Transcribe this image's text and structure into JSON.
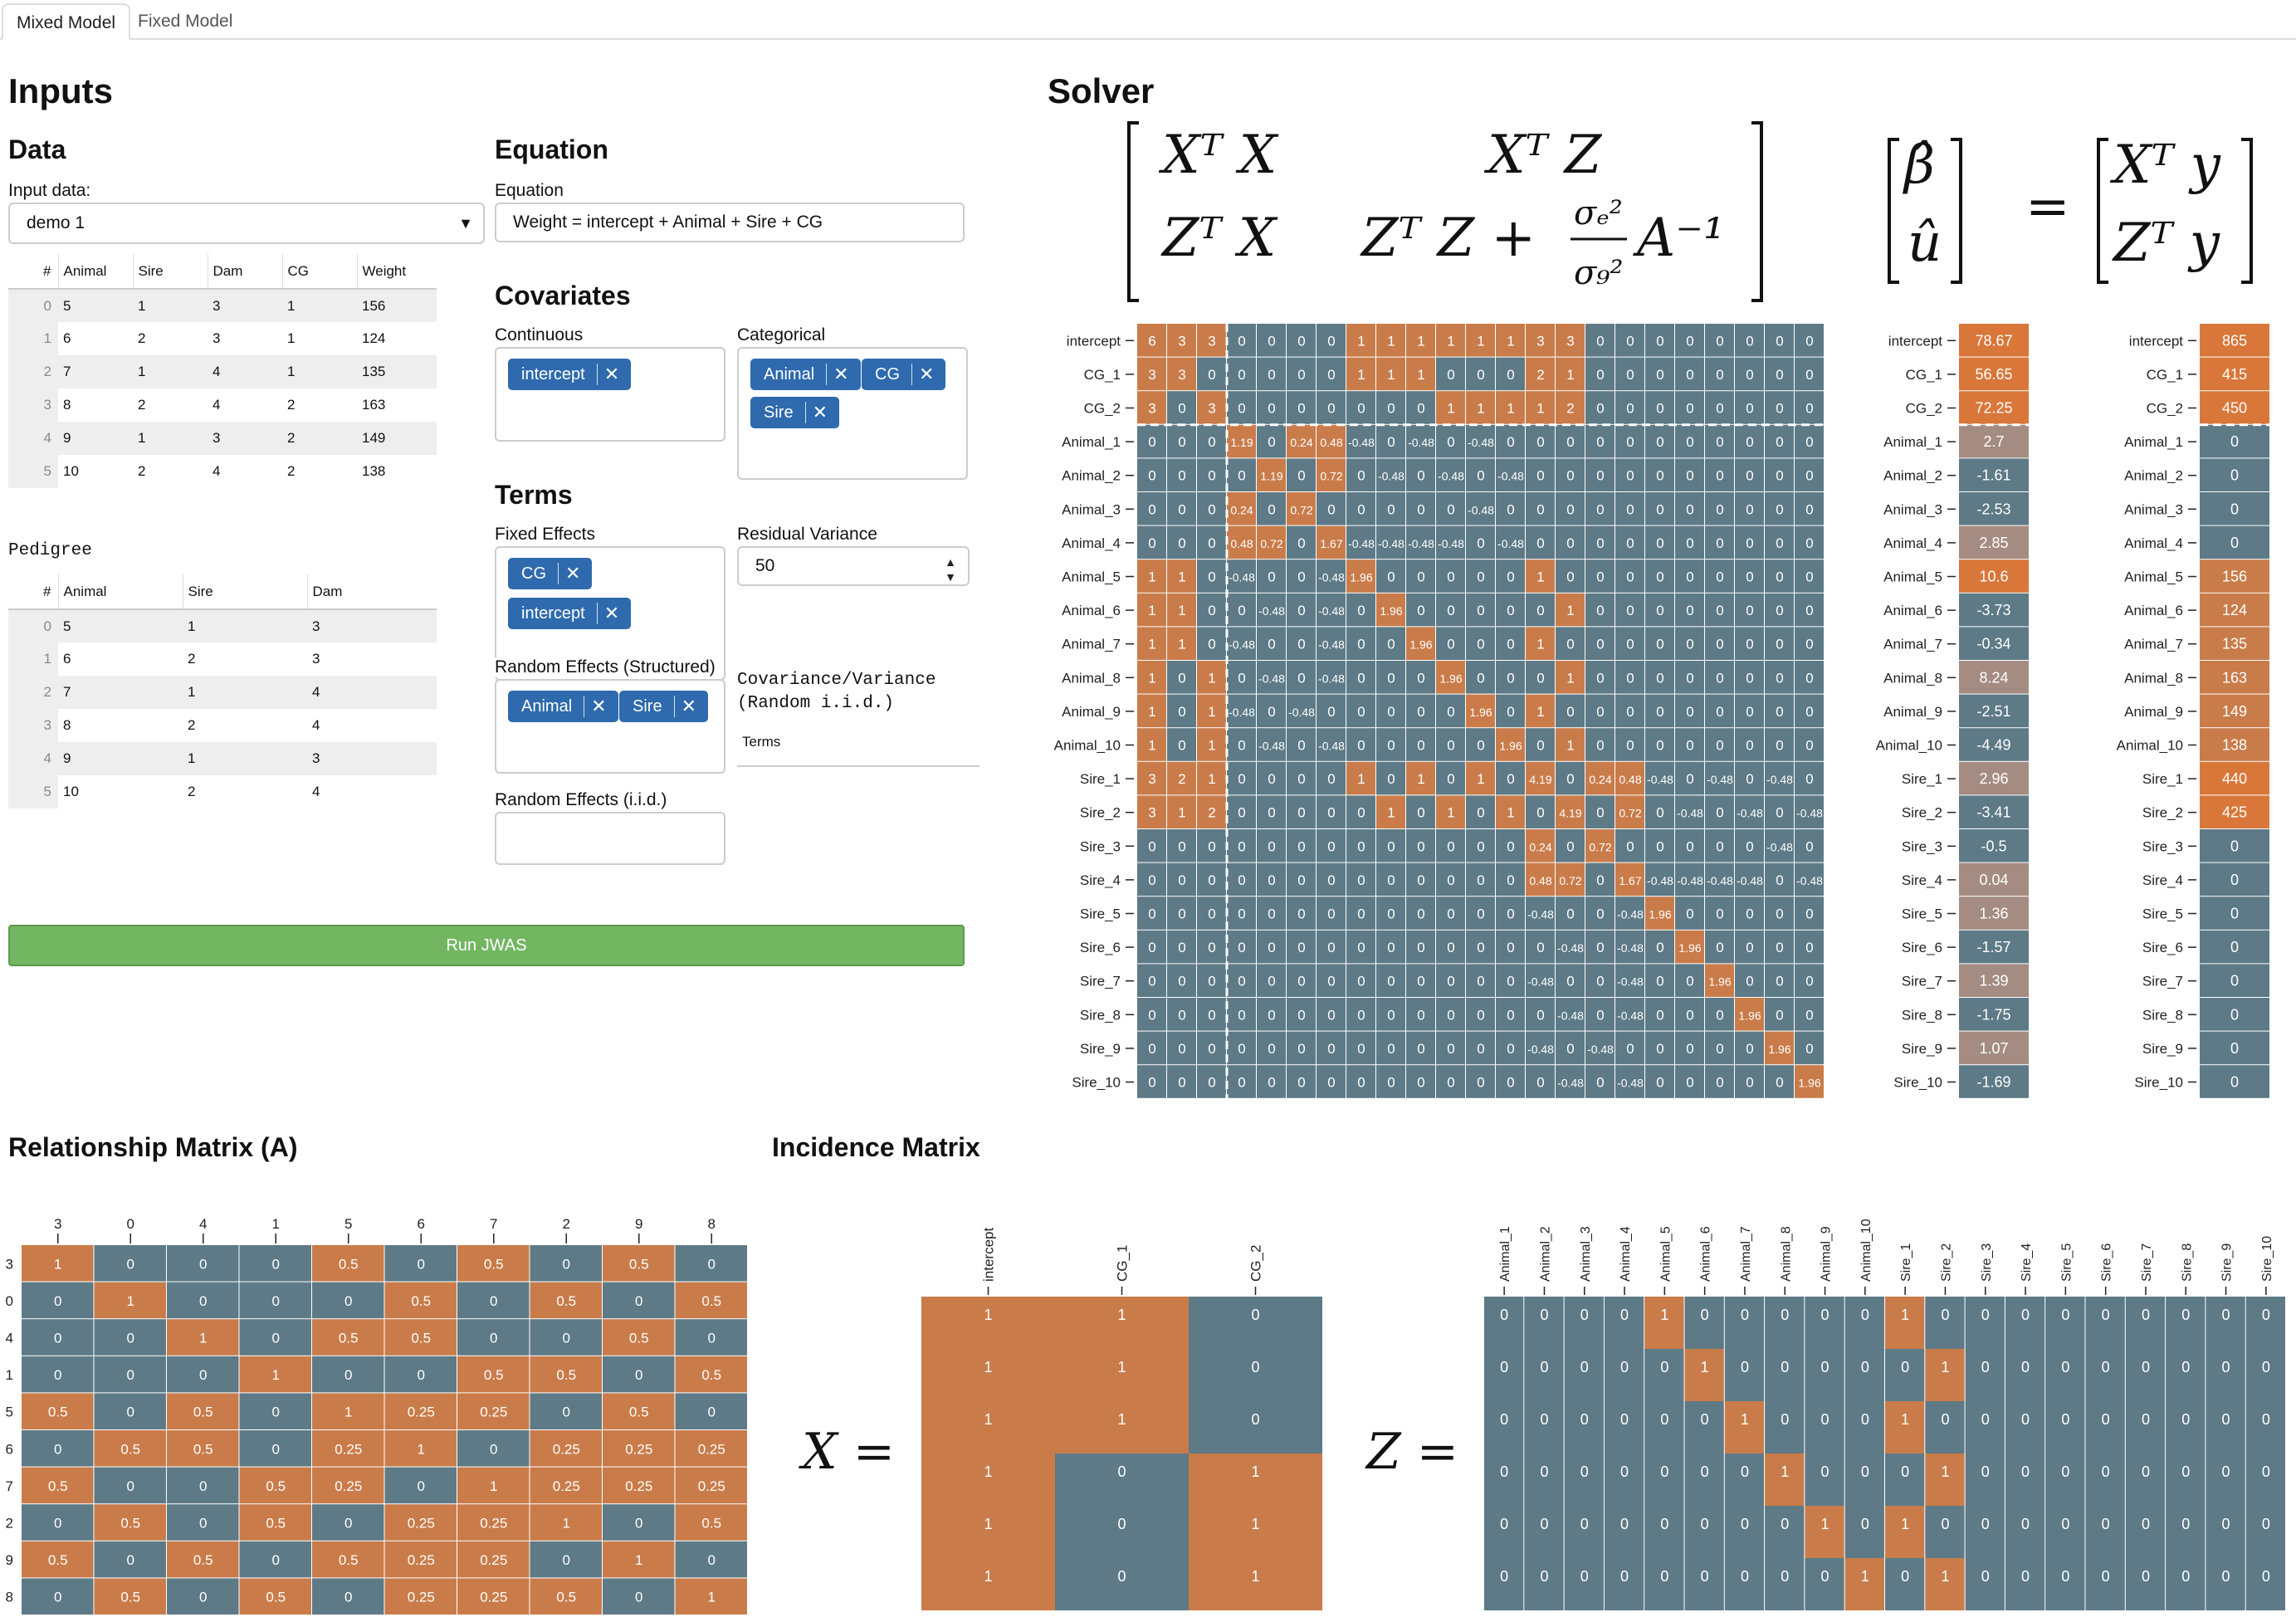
{
  "tabs": [
    "Mixed Model",
    "Fixed Model"
  ],
  "inputs": {
    "title": "Inputs",
    "data_title": "Data",
    "input_data_label": "Input data:",
    "input_data_value": "demo 1",
    "data_table": {
      "headers": [
        "#",
        "Animal",
        "Sire",
        "Dam",
        "CG",
        "Weight"
      ],
      "rows": [
        [
          "0",
          "5",
          "1",
          "3",
          "1",
          "156"
        ],
        [
          "1",
          "6",
          "2",
          "3",
          "1",
          "124"
        ],
        [
          "2",
          "7",
          "1",
          "4",
          "1",
          "135"
        ],
        [
          "3",
          "8",
          "2",
          "4",
          "2",
          "163"
        ],
        [
          "4",
          "9",
          "1",
          "3",
          "2",
          "149"
        ],
        [
          "5",
          "10",
          "2",
          "4",
          "2",
          "138"
        ]
      ]
    },
    "pedigree_title": "Pedigree",
    "pedigree_table": {
      "headers": [
        "#",
        "Animal",
        "Sire",
        "Dam"
      ],
      "rows": [
        [
          "0",
          "5",
          "1",
          "3"
        ],
        [
          "1",
          "6",
          "2",
          "3"
        ],
        [
          "2",
          "7",
          "1",
          "4"
        ],
        [
          "3",
          "8",
          "2",
          "4"
        ],
        [
          "4",
          "9",
          "1",
          "3"
        ],
        [
          "5",
          "10",
          "2",
          "4"
        ]
      ]
    },
    "equation_title": "Equation",
    "equation_label": "Equation",
    "equation_value": "Weight = intercept + Animal + Sire + CG",
    "covariates_title": "Covariates",
    "continuous_label": "Continuous",
    "continuous_chips": [
      "intercept"
    ],
    "categorical_label": "Categorical",
    "categorical_chips": [
      "Animal",
      "CG",
      "Sire"
    ],
    "terms_title": "Terms",
    "fixed_label": "Fixed Effects",
    "fixed_chips": [
      "CG",
      "intercept"
    ],
    "random_struct_label": "Random Effects (Structured)",
    "random_struct_chips": [
      "Animal",
      "Sire"
    ],
    "random_iid_label": "Random Effects (i.i.d.)",
    "residual_label": "Residual Variance",
    "residual_value": "50",
    "covvar_label_1": "Covariance/Variance",
    "covvar_label_2": "(Random i.i.d.)",
    "covvar_col": "Terms",
    "run_label": "Run JWAS"
  },
  "solver": {
    "title": "Solver",
    "row_labels": [
      "intercept",
      "CG_1",
      "CG_2",
      "Animal_1",
      "Animal_2",
      "Animal_3",
      "Animal_4",
      "Animal_5",
      "Animal_6",
      "Animal_7",
      "Animal_8",
      "Animal_9",
      "Animal_10",
      "Sire_1",
      "Sire_2",
      "Sire_3",
      "Sire_4",
      "Sire_5",
      "Sire_6",
      "Sire_7",
      "Sire_8",
      "Sire_9",
      "Sire_10"
    ],
    "lhs": [
      [
        "6",
        "3",
        "3",
        "0",
        "0",
        "0",
        "0",
        "1",
        "1",
        "1",
        "1",
        "1",
        "1",
        "3",
        "3",
        "0",
        "0",
        "0",
        "0",
        "0",
        "0",
        "0",
        "0"
      ],
      [
        "3",
        "3",
        "0",
        "0",
        "0",
        "0",
        "0",
        "1",
        "1",
        "1",
        "0",
        "0",
        "0",
        "2",
        "1",
        "0",
        "0",
        "0",
        "0",
        "0",
        "0",
        "0",
        "0"
      ],
      [
        "3",
        "0",
        "3",
        "0",
        "0",
        "0",
        "0",
        "0",
        "0",
        "0",
        "1",
        "1",
        "1",
        "1",
        "2",
        "0",
        "0",
        "0",
        "0",
        "0",
        "0",
        "0",
        "0"
      ],
      [
        "0",
        "0",
        "0",
        "1.19",
        "0",
        "0.24",
        "0.48",
        "-0.48",
        "0",
        "-0.48",
        "0",
        "-0.48",
        "0",
        "0",
        "0",
        "0",
        "0",
        "0",
        "0",
        "0",
        "0",
        "0",
        "0"
      ],
      [
        "0",
        "0",
        "0",
        "0",
        "1.19",
        "0",
        "0.72",
        "0",
        "-0.48",
        "0",
        "-0.48",
        "0",
        "-0.48",
        "0",
        "0",
        "0",
        "0",
        "0",
        "0",
        "0",
        "0",
        "0",
        "0"
      ],
      [
        "0",
        "0",
        "0",
        "0.24",
        "0",
        "0.72",
        "0",
        "0",
        "0",
        "0",
        "0",
        "-0.48",
        "0",
        "0",
        "0",
        "0",
        "0",
        "0",
        "0",
        "0",
        "0",
        "0",
        "0"
      ],
      [
        "0",
        "0",
        "0",
        "0.48",
        "0.72",
        "0",
        "1.67",
        "-0.48",
        "-0.48",
        "-0.48",
        "-0.48",
        "0",
        "-0.48",
        "0",
        "0",
        "0",
        "0",
        "0",
        "0",
        "0",
        "0",
        "0",
        "0"
      ],
      [
        "1",
        "1",
        "0",
        "-0.48",
        "0",
        "0",
        "-0.48",
        "1.96",
        "0",
        "0",
        "0",
        "0",
        "0",
        "1",
        "0",
        "0",
        "0",
        "0",
        "0",
        "0",
        "0",
        "0",
        "0"
      ],
      [
        "1",
        "1",
        "0",
        "0",
        "-0.48",
        "0",
        "-0.48",
        "0",
        "1.96",
        "0",
        "0",
        "0",
        "0",
        "0",
        "1",
        "0",
        "0",
        "0",
        "0",
        "0",
        "0",
        "0",
        "0"
      ],
      [
        "1",
        "1",
        "0",
        "-0.48",
        "0",
        "0",
        "-0.48",
        "0",
        "0",
        "1.96",
        "0",
        "0",
        "0",
        "1",
        "0",
        "0",
        "0",
        "0",
        "0",
        "0",
        "0",
        "0",
        "0"
      ],
      [
        "1",
        "0",
        "1",
        "0",
        "-0.48",
        "0",
        "-0.48",
        "0",
        "0",
        "0",
        "1.96",
        "0",
        "0",
        "0",
        "1",
        "0",
        "0",
        "0",
        "0",
        "0",
        "0",
        "0",
        "0"
      ],
      [
        "1",
        "0",
        "1",
        "-0.48",
        "0",
        "-0.48",
        "0",
        "0",
        "0",
        "0",
        "0",
        "1.96",
        "0",
        "1",
        "0",
        "0",
        "0",
        "0",
        "0",
        "0",
        "0",
        "0",
        "0"
      ],
      [
        "1",
        "0",
        "1",
        "0",
        "-0.48",
        "0",
        "-0.48",
        "0",
        "0",
        "0",
        "0",
        "0",
        "1.96",
        "0",
        "1",
        "0",
        "0",
        "0",
        "0",
        "0",
        "0",
        "0",
        "0"
      ],
      [
        "3",
        "2",
        "1",
        "0",
        "0",
        "0",
        "0",
        "1",
        "0",
        "1",
        "0",
        "1",
        "0",
        "4.19",
        "0",
        "0.24",
        "0.48",
        "-0.48",
        "0",
        "-0.48",
        "0",
        "-0.48",
        "0"
      ],
      [
        "3",
        "1",
        "2",
        "0",
        "0",
        "0",
        "0",
        "0",
        "1",
        "0",
        "1",
        "0",
        "1",
        "0",
        "4.19",
        "0",
        "0.72",
        "0",
        "-0.48",
        "0",
        "-0.48",
        "0",
        "-0.48"
      ],
      [
        "0",
        "0",
        "0",
        "0",
        "0",
        "0",
        "0",
        "0",
        "0",
        "0",
        "0",
        "0",
        "0",
        "0.24",
        "0",
        "0.72",
        "0",
        "0",
        "0",
        "0",
        "0",
        "-0.48",
        "0"
      ],
      [
        "0",
        "0",
        "0",
        "0",
        "0",
        "0",
        "0",
        "0",
        "0",
        "0",
        "0",
        "0",
        "0",
        "0.48",
        "0.72",
        "0",
        "1.67",
        "-0.48",
        "-0.48",
        "-0.48",
        "-0.48",
        "0",
        "-0.48"
      ],
      [
        "0",
        "0",
        "0",
        "0",
        "0",
        "0",
        "0",
        "0",
        "0",
        "0",
        "0",
        "0",
        "0",
        "-0.48",
        "0",
        "0",
        "-0.48",
        "1.96",
        "0",
        "0",
        "0",
        "0",
        "0"
      ],
      [
        "0",
        "0",
        "0",
        "0",
        "0",
        "0",
        "0",
        "0",
        "0",
        "0",
        "0",
        "0",
        "0",
        "0",
        "-0.48",
        "0",
        "-0.48",
        "0",
        "1.96",
        "0",
        "0",
        "0",
        "0"
      ],
      [
        "0",
        "0",
        "0",
        "0",
        "0",
        "0",
        "0",
        "0",
        "0",
        "0",
        "0",
        "0",
        "0",
        "-0.48",
        "0",
        "0",
        "-0.48",
        "0",
        "0",
        "1.96",
        "0",
        "0",
        "0"
      ],
      [
        "0",
        "0",
        "0",
        "0",
        "0",
        "0",
        "0",
        "0",
        "0",
        "0",
        "0",
        "0",
        "0",
        "0",
        "-0.48",
        "0",
        "-0.48",
        "0",
        "0",
        "0",
        "1.96",
        "0",
        "0"
      ],
      [
        "0",
        "0",
        "0",
        "0",
        "0",
        "0",
        "0",
        "0",
        "0",
        "0",
        "0",
        "0",
        "0",
        "-0.48",
        "0",
        "-0.48",
        "0",
        "0",
        "0",
        "0",
        "0",
        "1.96",
        "0"
      ],
      [
        "0",
        "0",
        "0",
        "0",
        "0",
        "0",
        "0",
        "0",
        "0",
        "0",
        "0",
        "0",
        "0",
        "0",
        "-0.48",
        "0",
        "-0.48",
        "0",
        "0",
        "0",
        "0",
        "0",
        "1.96"
      ]
    ],
    "solution": [
      "78.67",
      "56.65",
      "72.25",
      "2.7",
      "-1.61",
      "-2.53",
      "2.85",
      "10.6",
      "-3.73",
      "-0.34",
      "8.24",
      "-2.51",
      "-4.49",
      "2.96",
      "-3.41",
      "-0.5",
      "0.04",
      "1.36",
      "-1.57",
      "1.39",
      "-1.75",
      "1.07",
      "-1.69"
    ],
    "rhs": [
      "865",
      "415",
      "450",
      "0",
      "0",
      "0",
      "0",
      "156",
      "124",
      "135",
      "163",
      "149",
      "138",
      "440",
      "425",
      "0",
      "0",
      "0",
      "0",
      "0",
      "0",
      "0",
      "0"
    ]
  },
  "relationship": {
    "title": "Relationship Matrix (A)",
    "labels": [
      "3",
      "0",
      "4",
      "1",
      "5",
      "6",
      "7",
      "2",
      "9",
      "8"
    ],
    "values": [
      [
        "1",
        "0",
        "0",
        "0",
        "0.5",
        "0",
        "0.5",
        "0",
        "0.5",
        "0"
      ],
      [
        "0",
        "1",
        "0",
        "0",
        "0",
        "0.5",
        "0",
        "0.5",
        "0",
        "0.5"
      ],
      [
        "0",
        "0",
        "1",
        "0",
        "0.5",
        "0.5",
        "0",
        "0",
        "0.5",
        "0"
      ],
      [
        "0",
        "0",
        "0",
        "1",
        "0",
        "0",
        "0.5",
        "0.5",
        "0",
        "0.5"
      ],
      [
        "0.5",
        "0",
        "0.5",
        "0",
        "1",
        "0.25",
        "0.25",
        "0",
        "0.5",
        "0"
      ],
      [
        "0",
        "0.5",
        "0.5",
        "0",
        "0.25",
        "1",
        "0",
        "0.25",
        "0.25",
        "0.25"
      ],
      [
        "0.5",
        "0",
        "0",
        "0.5",
        "0.25",
        "0",
        "1",
        "0.25",
        "0.25",
        "0.25"
      ],
      [
        "0",
        "0.5",
        "0",
        "0.5",
        "0",
        "0.25",
        "0.25",
        "1",
        "0",
        "0.5"
      ],
      [
        "0.5",
        "0",
        "0.5",
        "0",
        "0.5",
        "0.25",
        "0.25",
        "0",
        "1",
        "0"
      ],
      [
        "0",
        "0.5",
        "0",
        "0.5",
        "0",
        "0.25",
        "0.25",
        "0.5",
        "0",
        "1"
      ]
    ]
  },
  "incidence": {
    "title": "Incidence Matrix",
    "x_label": "X =",
    "x_cols": [
      "intercept",
      "CG_1",
      "CG_2"
    ],
    "x_values": [
      [
        "1",
        "1",
        "0"
      ],
      [
        "1",
        "1",
        "0"
      ],
      [
        "1",
        "1",
        "0"
      ],
      [
        "1",
        "0",
        "1"
      ],
      [
        "1",
        "0",
        "1"
      ],
      [
        "1",
        "0",
        "1"
      ]
    ],
    "z_label": "Z =",
    "z_cols": [
      "Animal_1",
      "Animal_2",
      "Animal_3",
      "Animal_4",
      "Animal_5",
      "Animal_6",
      "Animal_7",
      "Animal_8",
      "Animal_9",
      "Animal_10",
      "Sire_1",
      "Sire_2",
      "Sire_3",
      "Sire_4",
      "Sire_5",
      "Sire_6",
      "Sire_7",
      "Sire_8",
      "Sire_9",
      "Sire_10"
    ],
    "z_values": [
      [
        "0",
        "0",
        "0",
        "0",
        "1",
        "0",
        "0",
        "0",
        "0",
        "0",
        "1",
        "0",
        "0",
        "0",
        "0",
        "0",
        "0",
        "0",
        "0",
        "0"
      ],
      [
        "0",
        "0",
        "0",
        "0",
        "0",
        "1",
        "0",
        "0",
        "0",
        "0",
        "0",
        "1",
        "0",
        "0",
        "0",
        "0",
        "0",
        "0",
        "0",
        "0"
      ],
      [
        "0",
        "0",
        "0",
        "0",
        "0",
        "0",
        "1",
        "0",
        "0",
        "0",
        "1",
        "0",
        "0",
        "0",
        "0",
        "0",
        "0",
        "0",
        "0",
        "0"
      ],
      [
        "0",
        "0",
        "0",
        "0",
        "0",
        "0",
        "0",
        "1",
        "0",
        "0",
        "0",
        "1",
        "0",
        "0",
        "0",
        "0",
        "0",
        "0",
        "0",
        "0"
      ],
      [
        "0",
        "0",
        "0",
        "0",
        "0",
        "0",
        "0",
        "0",
        "1",
        "0",
        "1",
        "0",
        "0",
        "0",
        "0",
        "0",
        "0",
        "0",
        "0",
        "0"
      ],
      [
        "0",
        "0",
        "0",
        "0",
        "0",
        "0",
        "0",
        "0",
        "0",
        "1",
        "0",
        "1",
        "0",
        "0",
        "0",
        "0",
        "0",
        "0",
        "0",
        "0"
      ]
    ]
  },
  "colors": {
    "pos": "#c97c4a",
    "neg": "#5d7a86",
    "high": "#d9773a",
    "mid": "#a48c82",
    "chip": "#2e6aad",
    "run": "#73b662"
  }
}
